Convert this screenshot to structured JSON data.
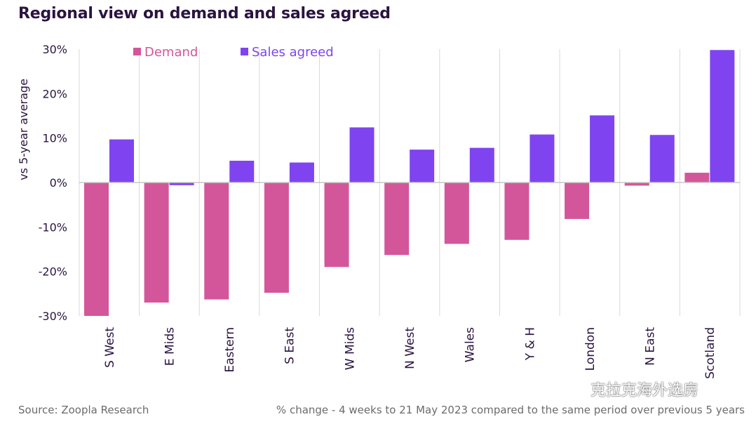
{
  "title": "Regional view on demand and sales agreed",
  "footer": {
    "source": "Source: Zoopla Research",
    "note": "% change - 4 weeks to 21 May 2023 compared to the same period over previous 5 years"
  },
  "watermark": "克拉克海外选房",
  "colors": {
    "demand": "#d4569a",
    "sales": "#7f44f0",
    "title": "#2a1440",
    "grid": "#d9d9d9"
  },
  "chart_data": {
    "type": "bar",
    "title": "Regional view on demand and sales agreed",
    "xlabel": "",
    "ylabel": "vs 5-year average",
    "ylim": [
      -30,
      30
    ],
    "yticks": [
      30,
      20,
      10,
      0,
      -10,
      -20,
      -30
    ],
    "ytick_labels": [
      "30%",
      "20%",
      "10%",
      "0%",
      "-10%",
      "-20%",
      "-30%"
    ],
    "grid": true,
    "legend_position": "top-left",
    "categories": [
      "S West",
      "E Mids",
      "Eastern",
      "S East",
      "W Mids",
      "N West",
      "Wales",
      "Y & H",
      "London",
      "N East",
      "Scotland"
    ],
    "series": [
      {
        "name": "Demand",
        "values": [
          -30,
          -27,
          -26.3,
          -24.8,
          -19,
          -16.3,
          -13.8,
          -12.9,
          -8.2,
          -0.7,
          2.2
        ]
      },
      {
        "name": "Sales agreed",
        "values": [
          9.7,
          -0.6,
          4.9,
          4.5,
          12.4,
          7.4,
          7.8,
          10.8,
          15.1,
          10.7,
          29.8
        ]
      }
    ]
  }
}
